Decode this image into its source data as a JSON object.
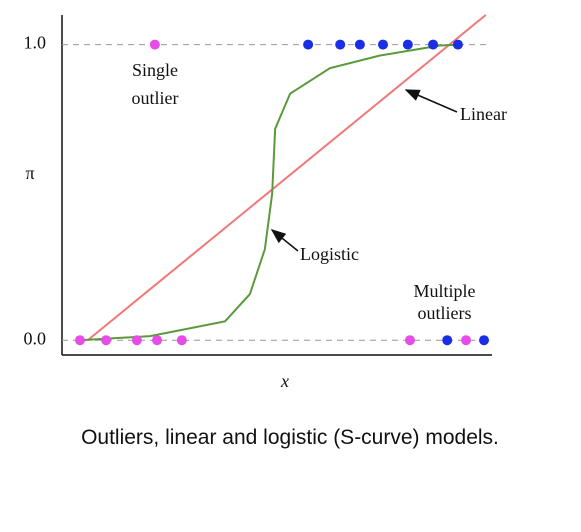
{
  "chart_data": {
    "type": "scatter",
    "caption": "Outliers, linear and logistic (S-curve) models.",
    "xlabel": "x",
    "ylabel": "π",
    "xlim": [
      0,
      100
    ],
    "ylim": [
      -0.05,
      1.1
    ],
    "yticks": [
      {
        "value": 0,
        "label": "0.0"
      },
      {
        "value": 1,
        "label": "1.0"
      }
    ],
    "grid": true,
    "annotations": [
      "Single outlier",
      "Multiple outliers"
    ],
    "series": [
      {
        "name": "Linear",
        "type": "line",
        "color": "#f07878",
        "x": [
          6,
          99
        ],
        "values": [
          0,
          1.1
        ]
      },
      {
        "name": "Logistic",
        "type": "line",
        "color": "#5a9a3c",
        "x": [
          4.2,
          20.6,
          38.1,
          43.9,
          47.4,
          49.1,
          49.8,
          53.3,
          62.6,
          74.3,
          88.3,
          93
        ],
        "values": [
          0,
          0.014,
          0.064,
          0.156,
          0.308,
          0.495,
          0.715,
          0.834,
          0.92,
          0.963,
          0.997,
          1.0
        ]
      },
      {
        "type": "scatter",
        "color": "#e64ce6",
        "x": [
          21.7,
          4.2,
          10.3,
          17.5,
          22.2,
          28,
          81.3,
          94.4
        ],
        "values": [
          1,
          0,
          0,
          0,
          0,
          0,
          0,
          0
        ]
      },
      {
        "type": "scatter",
        "color": "#1a2ee6",
        "x": [
          57.5,
          65,
          69.6,
          75,
          80.8,
          86.7,
          92.5,
          90,
          98.6
        ],
        "values": [
          1,
          1,
          1,
          1,
          1,
          1,
          1,
          0,
          0
        ]
      }
    ]
  }
}
